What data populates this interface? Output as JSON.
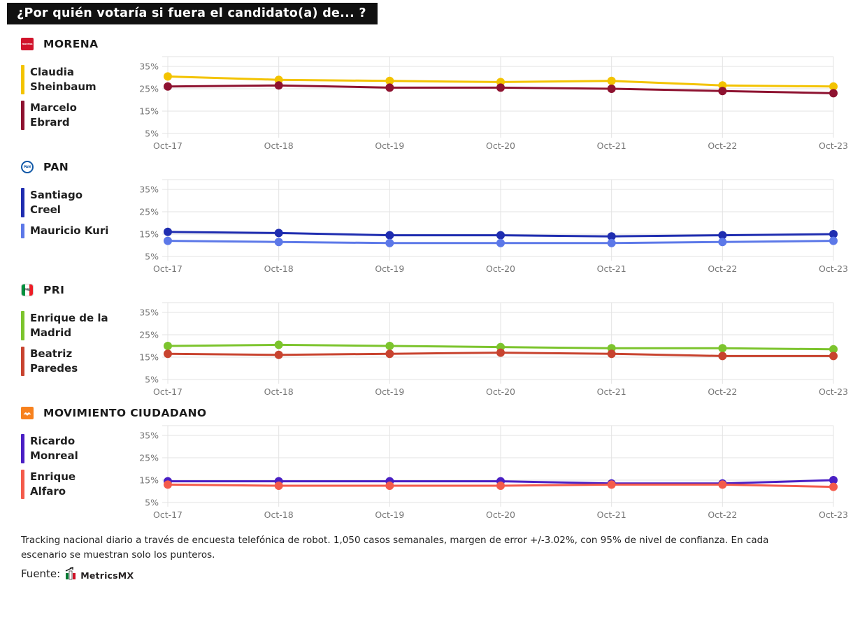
{
  "title": "¿Por quién votaría si fuera el candidato(a) de... ?",
  "icons": {
    "morena_text": "morena",
    "pan_text": "PAN",
    "pri_text": "PRI"
  },
  "footer": {
    "note": "Tracking nacional diario a través de encuesta telefónica de robot. 1,050 casos semanales, margen de error +/-3.02%, con 95% de nivel de confianza. En cada escenario se muestran solo los punteros.",
    "source_label": "Fuente:",
    "source_name": "MetricsMX"
  },
  "chart_data": [
    {
      "type": "line",
      "party": "MORENA",
      "x": [
        "Oct-17",
        "Oct-18",
        "Oct-19",
        "Oct-20",
        "Oct-21",
        "Oct-22",
        "Oct-23"
      ],
      "yticks": [
        35,
        25,
        15,
        5
      ],
      "ylim": [
        0,
        38
      ],
      "grid": true,
      "legend_position": "left",
      "series": [
        {
          "name": "Claudia Sheinbaum",
          "name_lines": [
            "Claudia",
            "Sheinbaum"
          ],
          "color": "#F3C300",
          "values": [
            30.5,
            29,
            28.5,
            28,
            28.5,
            26.5,
            26
          ]
        },
        {
          "name": "Marcelo Ebrard",
          "name_lines": [
            "Marcelo",
            "Ebrard"
          ],
          "color": "#8E1230",
          "values": [
            26,
            26.5,
            25.5,
            25.5,
            25,
            24,
            23
          ]
        }
      ]
    },
    {
      "type": "line",
      "party": "PAN",
      "x": [
        "Oct-17",
        "Oct-18",
        "Oct-19",
        "Oct-20",
        "Oct-21",
        "Oct-22",
        "Oct-23"
      ],
      "yticks": [
        35,
        25,
        15,
        5
      ],
      "ylim": [
        0,
        38
      ],
      "grid": true,
      "legend_position": "left",
      "series": [
        {
          "name": "Santiago Creel",
          "name_lines": [
            "Santiago",
            "Creel"
          ],
          "color": "#1F2DB0",
          "values": [
            16,
            15.5,
            14.5,
            14.5,
            14,
            14.5,
            15
          ]
        },
        {
          "name": "Mauricio Kuri",
          "name_lines": [
            "Mauricio Kuri",
            ""
          ],
          "color": "#5C78E8",
          "values": [
            12,
            11.5,
            11,
            11,
            11,
            11.5,
            12
          ]
        }
      ]
    },
    {
      "type": "line",
      "party": "PRI",
      "x": [
        "Oct-17",
        "Oct-18",
        "Oct-19",
        "Oct-20",
        "Oct-21",
        "Oct-22",
        "Oct-23"
      ],
      "yticks": [
        35,
        25,
        15,
        5
      ],
      "ylim": [
        0,
        38
      ],
      "grid": true,
      "legend_position": "left",
      "series": [
        {
          "name": "Enrique de la Madrid",
          "name_lines": [
            "Enrique de la",
            "Madrid"
          ],
          "color": "#7CC42D",
          "values": [
            20,
            20.5,
            20,
            19.5,
            19,
            19,
            18.5
          ]
        },
        {
          "name": "Beatriz Paredes",
          "name_lines": [
            "Beatriz",
            "Paredes"
          ],
          "color": "#C8432F",
          "values": [
            16.5,
            16,
            16.5,
            17,
            16.5,
            15.5,
            15.5
          ]
        }
      ]
    },
    {
      "type": "line",
      "party": "MOVIMIENTO CIUDADANO",
      "x": [
        "Oct-17",
        "Oct-18",
        "Oct-19",
        "Oct-20",
        "Oct-21",
        "Oct-22",
        "Oct-23"
      ],
      "yticks": [
        35,
        25,
        15,
        5
      ],
      "ylim": [
        0,
        38
      ],
      "grid": true,
      "legend_position": "left",
      "series": [
        {
          "name": "Ricardo Monreal",
          "name_lines": [
            "Ricardo",
            "Monreal"
          ],
          "color": "#4A1FC4",
          "values": [
            14.5,
            14.5,
            14.5,
            14.5,
            13.5,
            13.5,
            15
          ]
        },
        {
          "name": "Enrique Alfaro",
          "name_lines": [
            "Enrique",
            "Alfaro"
          ],
          "color": "#F45B4B",
          "values": [
            13,
            12.5,
            12.5,
            12.5,
            13,
            13,
            12
          ]
        }
      ]
    }
  ]
}
